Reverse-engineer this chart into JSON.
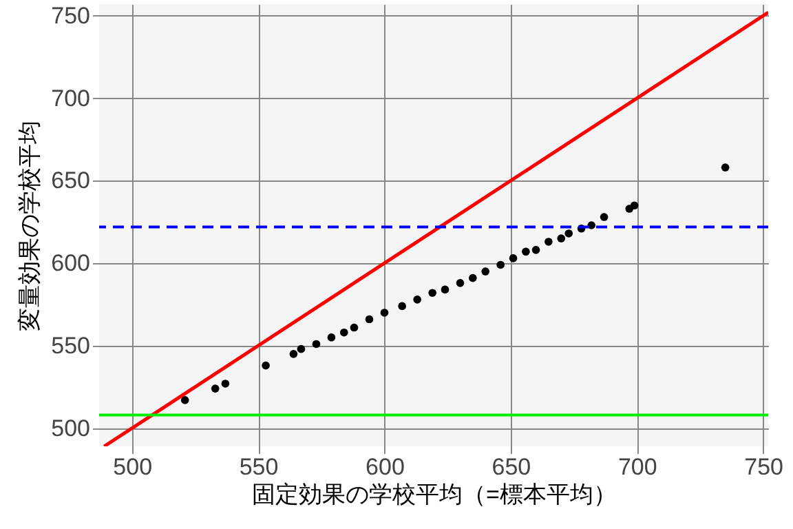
{
  "chart_data": {
    "type": "scatter",
    "xlabel": "固定効果の学校平均（=標本平均）",
    "ylabel": "変量効果の学校平均",
    "xlim": [
      487,
      752
    ],
    "ylim": [
      489,
      757
    ],
    "xticks": [
      500,
      550,
      600,
      650,
      700,
      750
    ],
    "yticks": [
      500,
      550,
      600,
      650,
      700,
      750
    ],
    "grid": true,
    "series": [
      {
        "marker": "circle",
        "color": "#000000",
        "x": [
          521,
          533,
          537,
          553,
          564,
          567,
          573,
          579,
          584,
          588,
          594,
          600,
          607,
          613,
          619,
          624,
          630,
          635,
          640,
          646,
          651,
          656,
          660,
          665,
          670,
          673,
          678,
          682,
          687,
          697,
          699,
          735
        ],
        "values": [
          517,
          524,
          527,
          538,
          545,
          548,
          551,
          555,
          558,
          561,
          566,
          570,
          574,
          578,
          582,
          584,
          588,
          591,
          595,
          599,
          603,
          607,
          608,
          613,
          615,
          618,
          621,
          623,
          628,
          633,
          635,
          658
        ]
      },
      {
        "type": "line",
        "color": "#ff0000",
        "x": [
          489,
          752
        ],
        "values": [
          489,
          752
        ]
      }
    ],
    "ref_lines": [
      {
        "axis": "y",
        "value": 622,
        "color": "#0000ff",
        "line_style": "dashed"
      },
      {
        "axis": "y",
        "value": 508,
        "color": "#00ee00",
        "line_style": "solid"
      }
    ]
  }
}
